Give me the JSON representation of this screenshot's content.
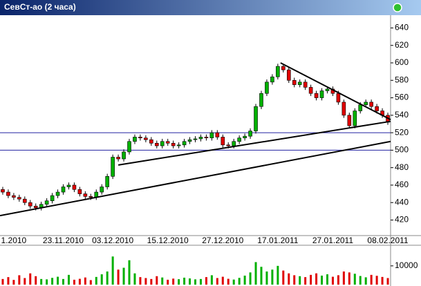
{
  "chart_data": {
    "type": "candlestick",
    "title": "СевСт-ао (2 часа)",
    "categories": [
      null,
      null,
      "1.2010",
      null,
      null,
      null,
      null,
      null,
      null,
      null,
      null,
      "23.11.2010",
      null,
      null,
      null,
      null,
      null,
      null,
      null,
      null,
      "03.12.2010",
      null,
      null,
      null,
      null,
      null,
      null,
      null,
      null,
      null,
      "15.12.2010",
      null,
      null,
      null,
      null,
      null,
      null,
      null,
      null,
      null,
      "27.12.2010",
      null,
      null,
      null,
      null,
      null,
      null,
      null,
      null,
      null,
      "17.01.2011",
      null,
      null,
      null,
      null,
      null,
      null,
      null,
      null,
      null,
      "27.01.2011",
      null,
      null,
      null,
      null,
      null,
      null,
      null,
      null,
      null,
      "08.02.2011"
    ],
    "open": [
      455,
      452,
      448,
      446,
      444,
      440,
      436,
      434,
      438,
      442,
      448,
      452,
      458,
      460,
      455,
      450,
      447,
      446,
      452,
      458,
      470,
      492,
      490,
      498,
      510,
      515,
      514,
      512,
      508,
      505,
      510,
      508,
      505,
      506,
      510,
      512,
      513,
      515,
      514,
      520,
      515,
      506,
      505,
      510,
      514,
      516,
      522,
      550,
      565,
      578,
      584,
      596,
      592,
      580,
      575,
      578,
      572,
      565,
      560,
      568,
      570,
      565,
      555,
      540,
      528,
      545,
      552,
      555,
      550,
      545,
      540
    ],
    "high": [
      458,
      455,
      451,
      449,
      447,
      443,
      439,
      441,
      445,
      451,
      455,
      461,
      463,
      463,
      458,
      453,
      450,
      455,
      461,
      473,
      495,
      495,
      501,
      513,
      518,
      518,
      517,
      515,
      511,
      513,
      513,
      511,
      509,
      513,
      515,
      516,
      518,
      518,
      523,
      523,
      518,
      509,
      513,
      517,
      519,
      525,
      553,
      568,
      581,
      587,
      599,
      599,
      595,
      583,
      581,
      581,
      575,
      568,
      571,
      573,
      573,
      568,
      558,
      543,
      548,
      555,
      558,
      558,
      553,
      548,
      543
    ],
    "low": [
      449,
      445,
      443,
      441,
      437,
      433,
      431,
      431,
      435,
      439,
      445,
      449,
      455,
      452,
      447,
      444,
      443,
      443,
      449,
      455,
      467,
      487,
      487,
      495,
      507,
      511,
      509,
      505,
      502,
      502,
      505,
      502,
      502,
      503,
      507,
      509,
      510,
      511,
      511,
      512,
      503,
      502,
      502,
      507,
      511,
      513,
      519,
      547,
      562,
      575,
      581,
      589,
      577,
      572,
      572,
      569,
      562,
      557,
      557,
      565,
      562,
      552,
      537,
      525,
      525,
      542,
      549,
      547,
      542,
      537,
      529
    ],
    "close": [
      452,
      448,
      446,
      444,
      440,
      436,
      434,
      438,
      442,
      448,
      452,
      458,
      460,
      455,
      450,
      447,
      446,
      452,
      458,
      470,
      492,
      490,
      498,
      510,
      515,
      514,
      512,
      508,
      505,
      510,
      508,
      505,
      506,
      510,
      512,
      513,
      515,
      514,
      520,
      515,
      506,
      505,
      510,
      514,
      516,
      522,
      550,
      565,
      578,
      584,
      596,
      592,
      580,
      575,
      578,
      572,
      565,
      560,
      568,
      570,
      565,
      555,
      540,
      528,
      545,
      552,
      555,
      550,
      545,
      540,
      532
    ],
    "volume": [
      3000,
      4000,
      2500,
      5000,
      3500,
      6000,
      4500,
      3000,
      2800,
      3600,
      4200,
      3000,
      5200,
      2600,
      3100,
      3800,
      2400,
      4100,
      5500,
      7000,
      15000,
      8000,
      9000,
      13000,
      6000,
      4000,
      3500,
      3000,
      4500,
      3800,
      2600,
      3200,
      2900,
      3700,
      3300,
      2800,
      3000,
      4000,
      5000,
      3500,
      4200,
      3100,
      2700,
      3600,
      4800,
      6500,
      12000,
      9500,
      7000,
      8000,
      10000,
      7500,
      6000,
      5000,
      4500,
      4000,
      5200,
      6000,
      4800,
      5500,
      4200,
      5000,
      7000,
      6500,
      5800,
      4600,
      3900,
      5200,
      4700,
      4100,
      3500
    ],
    "ylim": [
      403,
      653
    ],
    "yticks": [
      420,
      440,
      460,
      480,
      500,
      520,
      540,
      560,
      580,
      600,
      620,
      640
    ],
    "vlim": [
      0,
      21000
    ],
    "vticks": [
      10000
    ],
    "levels": [
      520,
      500
    ],
    "trendlines": [
      {
        "x": [
          -0.5,
          70.5
        ],
        "y": [
          425,
          510
        ]
      },
      {
        "x": [
          21,
          70.5
        ],
        "y": [
          483,
          533
        ]
      },
      {
        "x": [
          50.5,
          70.5
        ],
        "y": [
          600,
          535
        ]
      }
    ],
    "up_color": "#00b000",
    "down_color": "#e00000",
    "level_color": "#2020a0",
    "trend_color": "#000000"
  }
}
